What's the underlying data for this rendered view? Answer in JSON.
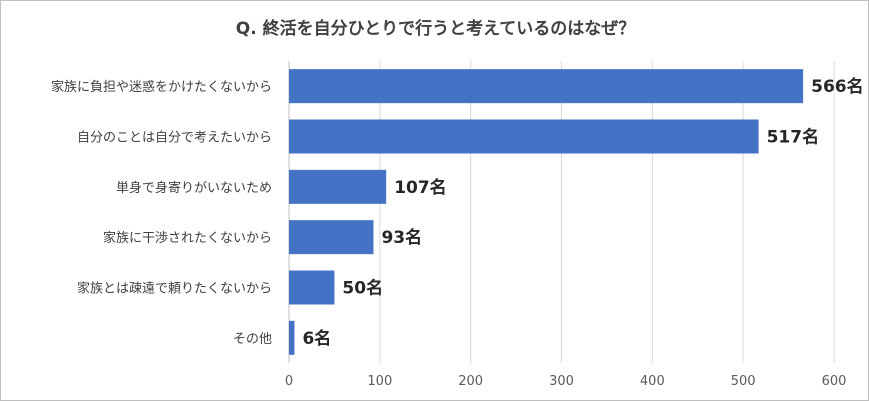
{
  "chart_data": {
    "type": "bar",
    "orientation": "horizontal",
    "title": "Q. 終活を自分ひとりで行うと考えているのはなぜ？",
    "categories": [
      "家族に負担や迷惑をかけたくないから",
      "自分のことは自分で考えたいから",
      "単身で身寄りがいないため",
      "家族に干渉されたくないから",
      "家族とは疎遠で頼りたくないから",
      "その他"
    ],
    "values": [
      566,
      517,
      107,
      93,
      50,
      6
    ],
    "value_labels": [
      "566名",
      "517名",
      "107名",
      "93名",
      "50名",
      "6名"
    ],
    "xlim": [
      0,
      600
    ],
    "xticks": [
      0,
      100,
      200,
      300,
      400,
      500,
      600
    ],
    "grid": true,
    "legend": "none",
    "bar_color": "#4472c4"
  }
}
